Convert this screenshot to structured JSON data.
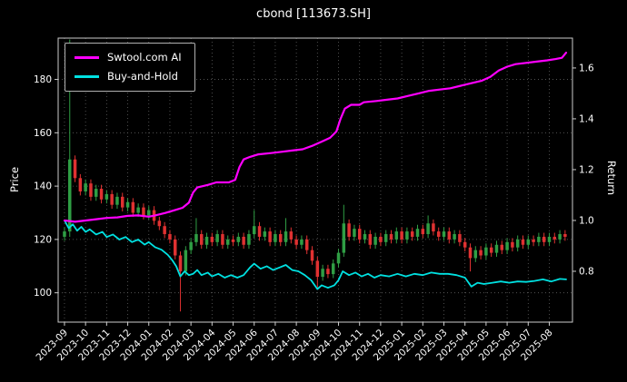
{
  "title": "cbond [113673.SH]",
  "legend": [
    {
      "label": "Swtool.com AI",
      "color": "#ff00ff"
    },
    {
      "label": "Buy-and-Hold",
      "color": "#00e1e1"
    }
  ],
  "axes": {
    "left": {
      "label": "Price",
      "ticks": [
        100,
        120,
        140,
        160,
        180
      ],
      "range": [
        89,
        195.5
      ]
    },
    "right": {
      "label": "Return",
      "ticks": [
        0.8,
        1.0,
        1.2,
        1.4,
        1.6
      ],
      "range": [
        0.6,
        1.7175
      ]
    },
    "x": {
      "range": [
        -0.3,
        24.1
      ],
      "tick_positions": [
        0,
        1,
        2,
        3,
        4,
        5,
        6,
        7,
        8,
        9,
        10,
        11,
        12,
        13,
        14,
        15,
        16,
        17,
        18,
        19,
        20,
        21,
        22,
        23
      ],
      "tick_labels": [
        "2023-09",
        "2023-10",
        "2023-11",
        "2023-12",
        "2024-01",
        "2024-02",
        "2024-03",
        "2024-04",
        "2024-05",
        "2024-06",
        "2024-07",
        "2024-08",
        "2024-09",
        "2024-10",
        "2024-11",
        "2024-12",
        "2025-01",
        "2025-02",
        "2025-03",
        "2025-04",
        "2025-05",
        "2025-06",
        "2025-07",
        "2025-08"
      ]
    }
  },
  "colors": {
    "background": "#000000",
    "text": "#ffffff",
    "grid": "#5f5f5f",
    "spine": "#cccccc",
    "candle_up": "#2f9e44",
    "candle_down": "#e03131",
    "ai_line": "#ff00ff",
    "bh_line": "#00e1e1"
  },
  "chart_data": {
    "type": "candlestick",
    "title": "cbond [113673.SH]",
    "xlabel": "",
    "ylabel_left": "Price",
    "ylabel_right": "Return",
    "x_unit": "months since 2023-09",
    "grid": true,
    "legend_position": "upper left",
    "candles_format": [
      "x",
      "open",
      "high",
      "low",
      "close"
    ],
    "candles": [
      [
        0,
        121,
        124.5,
        119.5,
        123
      ],
      [
        0.25,
        123,
        195,
        121,
        150
      ],
      [
        0.5,
        150,
        151.5,
        141.5,
        143
      ],
      [
        0.75,
        143,
        144.5,
        136.5,
        138
      ],
      [
        1,
        138,
        142.5,
        136.5,
        141
      ],
      [
        1.25,
        141,
        142.5,
        134.5,
        136
      ],
      [
        1.5,
        136,
        140.5,
        134.5,
        139
      ],
      [
        1.75,
        139,
        140.5,
        133.5,
        135
      ],
      [
        2,
        135,
        138.5,
        133.5,
        137
      ],
      [
        2.25,
        137,
        138.5,
        131.5,
        133
      ],
      [
        2.5,
        133,
        137.5,
        131.5,
        136
      ],
      [
        2.75,
        136,
        137.5,
        130.5,
        132
      ],
      [
        3,
        132,
        135.5,
        130.5,
        134
      ],
      [
        3.25,
        134,
        135.5,
        128.5,
        130
      ],
      [
        3.5,
        130,
        133.5,
        128.5,
        132
      ],
      [
        3.75,
        132,
        133.5,
        127.5,
        129
      ],
      [
        4,
        129,
        132.5,
        127.5,
        131
      ],
      [
        4.25,
        131,
        132.5,
        125.5,
        127
      ],
      [
        4.5,
        127,
        128.5,
        123.5,
        125
      ],
      [
        4.75,
        125,
        126.5,
        120.5,
        122
      ],
      [
        5,
        122,
        123.5,
        118.5,
        120
      ],
      [
        5.25,
        120,
        121.5,
        112.5,
        114
      ],
      [
        5.5,
        114,
        115.5,
        93,
        108
      ],
      [
        5.75,
        108,
        117.5,
        106.5,
        116
      ],
      [
        6,
        116,
        120.5,
        114.5,
        119
      ],
      [
        6.25,
        119,
        128,
        117.5,
        122
      ],
      [
        6.5,
        122,
        123.5,
        116.5,
        118
      ],
      [
        6.75,
        118,
        122.5,
        116.5,
        121
      ],
      [
        7,
        121,
        122.5,
        117.5,
        119
      ],
      [
        7.25,
        119,
        123.5,
        117.5,
        122
      ],
      [
        7.5,
        122,
        123.5,
        116.5,
        118
      ],
      [
        7.75,
        118,
        121.5,
        116.5,
        120
      ],
      [
        8,
        120,
        121.5,
        117.5,
        119
      ],
      [
        8.25,
        119,
        122.5,
        117.5,
        121
      ],
      [
        8.5,
        121,
        122.5,
        116.5,
        118
      ],
      [
        8.75,
        118,
        123.5,
        116.5,
        122
      ],
      [
        9,
        122,
        131,
        120.5,
        125
      ],
      [
        9.25,
        125,
        126.5,
        119.5,
        121
      ],
      [
        9.5,
        121,
        124.5,
        119.5,
        123
      ],
      [
        9.75,
        123,
        124.5,
        117.5,
        119
      ],
      [
        10,
        119,
        123.5,
        117.5,
        122
      ],
      [
        10.25,
        122,
        123.5,
        117.5,
        119
      ],
      [
        10.5,
        119,
        128,
        117.5,
        123
      ],
      [
        10.75,
        123,
        124.5,
        118.5,
        120
      ],
      [
        11,
        120,
        121.5,
        116.5,
        118
      ],
      [
        11.25,
        118,
        121.5,
        116.5,
        120
      ],
      [
        11.5,
        120,
        121.5,
        114.5,
        116
      ],
      [
        11.75,
        116,
        117.5,
        110.5,
        112
      ],
      [
        12,
        112,
        113.5,
        102,
        106
      ],
      [
        12.25,
        106,
        110.5,
        104.5,
        109
      ],
      [
        12.5,
        109,
        110.5,
        105.5,
        107
      ],
      [
        12.75,
        107,
        112.5,
        105.5,
        111
      ],
      [
        13,
        111,
        116.5,
        109.5,
        115
      ],
      [
        13.25,
        115,
        133,
        113.5,
        126
      ],
      [
        13.5,
        126,
        127.5,
        119.5,
        121
      ],
      [
        13.75,
        121,
        125.5,
        119.5,
        124
      ],
      [
        14,
        124,
        125.5,
        118.5,
        120
      ],
      [
        14.25,
        120,
        123.5,
        118.5,
        122
      ],
      [
        14.5,
        122,
        123.5,
        116.5,
        118
      ],
      [
        14.75,
        118,
        122.5,
        116.5,
        121
      ],
      [
        15,
        121,
        122.5,
        117.5,
        119
      ],
      [
        15.25,
        119,
        123.5,
        117.5,
        122
      ],
      [
        15.5,
        122,
        123.5,
        118.5,
        120
      ],
      [
        15.75,
        120,
        124.5,
        118.5,
        123
      ],
      [
        16,
        123,
        124.5,
        118.5,
        120
      ],
      [
        16.25,
        120,
        124.5,
        118.5,
        123
      ],
      [
        16.5,
        123,
        124.5,
        119.5,
        121
      ],
      [
        16.75,
        121,
        125.5,
        119.5,
        124
      ],
      [
        17,
        124,
        125.5,
        120.5,
        122
      ],
      [
        17.25,
        122,
        129,
        120.5,
        126
      ],
      [
        17.5,
        126,
        127.5,
        121.5,
        123
      ],
      [
        17.75,
        123,
        124.5,
        119.5,
        121
      ],
      [
        18,
        121,
        124.5,
        119.5,
        123
      ],
      [
        18.25,
        123,
        124.5,
        118.5,
        120
      ],
      [
        18.5,
        120,
        123.5,
        118.5,
        122
      ],
      [
        18.75,
        122,
        123.5,
        117.5,
        119
      ],
      [
        19,
        119,
        120.5,
        115.5,
        117
      ],
      [
        19.25,
        117,
        118.5,
        108,
        113
      ],
      [
        19.5,
        113,
        117.5,
        111.5,
        116
      ],
      [
        19.75,
        116,
        117.5,
        112.5,
        114
      ],
      [
        20,
        114,
        118.5,
        112.5,
        117
      ],
      [
        20.25,
        117,
        118.5,
        113.5,
        115
      ],
      [
        20.5,
        115,
        119.5,
        113.5,
        118
      ],
      [
        20.75,
        118,
        119.5,
        114.5,
        116
      ],
      [
        21,
        116,
        120.5,
        114.5,
        119
      ],
      [
        21.25,
        119,
        120.5,
        115.5,
        117
      ],
      [
        21.5,
        117,
        121.5,
        115.5,
        120
      ],
      [
        21.75,
        120,
        121.5,
        116.5,
        118
      ],
      [
        22,
        118,
        121.5,
        116.5,
        120
      ],
      [
        22.25,
        120,
        121.5,
        117.5,
        119
      ],
      [
        22.5,
        119,
        122.5,
        117.5,
        121
      ],
      [
        22.75,
        121,
        122.5,
        117.5,
        119
      ],
      [
        23,
        119,
        122.5,
        117.5,
        121
      ],
      [
        23.25,
        121,
        122.5,
        118.5,
        120
      ],
      [
        23.5,
        120,
        123.5,
        118.5,
        122
      ],
      [
        23.75,
        122,
        123.5,
        119.5,
        121
      ]
    ],
    "series": [
      {
        "name": "Swtool.com AI",
        "axis": "right",
        "color": "#ff00ff",
        "points": [
          [
            0,
            1.0
          ],
          [
            0.5,
            0.995
          ],
          [
            1,
            1.0
          ],
          [
            1.5,
            1.005
          ],
          [
            2,
            1.01
          ],
          [
            2.5,
            1.012
          ],
          [
            3,
            1.018
          ],
          [
            3.5,
            1.02
          ],
          [
            4,
            1.015
          ],
          [
            4.3,
            1.02
          ],
          [
            4.8,
            1.03
          ],
          [
            5.2,
            1.04
          ],
          [
            5.6,
            1.05
          ],
          [
            5.9,
            1.07
          ],
          [
            6.1,
            1.11
          ],
          [
            6.3,
            1.13
          ],
          [
            6.8,
            1.14
          ],
          [
            7.2,
            1.15
          ],
          [
            7.8,
            1.15
          ],
          [
            8.1,
            1.16
          ],
          [
            8.3,
            1.21
          ],
          [
            8.5,
            1.24
          ],
          [
            8.8,
            1.25
          ],
          [
            9.2,
            1.26
          ],
          [
            9.8,
            1.265
          ],
          [
            10.3,
            1.27
          ],
          [
            10.8,
            1.275
          ],
          [
            11.3,
            1.28
          ],
          [
            11.8,
            1.295
          ],
          [
            12.2,
            1.31
          ],
          [
            12.6,
            1.325
          ],
          [
            12.9,
            1.35
          ],
          [
            13.1,
            1.4
          ],
          [
            13.3,
            1.44
          ],
          [
            13.6,
            1.455
          ],
          [
            14,
            1.455
          ],
          [
            14.2,
            1.465
          ],
          [
            14.8,
            1.47
          ],
          [
            15.3,
            1.475
          ],
          [
            15.8,
            1.48
          ],
          [
            16.3,
            1.49
          ],
          [
            16.8,
            1.5
          ],
          [
            17.3,
            1.51
          ],
          [
            17.8,
            1.515
          ],
          [
            18.3,
            1.52
          ],
          [
            18.8,
            1.53
          ],
          [
            19.3,
            1.54
          ],
          [
            19.8,
            1.55
          ],
          [
            20.2,
            1.565
          ],
          [
            20.6,
            1.59
          ],
          [
            21,
            1.605
          ],
          [
            21.4,
            1.615
          ],
          [
            21.9,
            1.62
          ],
          [
            22.4,
            1.625
          ],
          [
            22.9,
            1.63
          ],
          [
            23.3,
            1.635
          ],
          [
            23.6,
            1.64
          ],
          [
            23.8,
            1.66
          ]
        ]
      },
      {
        "name": "Buy-and-Hold",
        "axis": "right",
        "color": "#00e1e1",
        "points": [
          [
            0,
            1.0
          ],
          [
            0.2,
            0.97
          ],
          [
            0.4,
            0.985
          ],
          [
            0.6,
            0.96
          ],
          [
            0.8,
            0.975
          ],
          [
            1,
            0.955
          ],
          [
            1.2,
            0.965
          ],
          [
            1.5,
            0.945
          ],
          [
            1.8,
            0.955
          ],
          [
            2,
            0.935
          ],
          [
            2.3,
            0.945
          ],
          [
            2.6,
            0.925
          ],
          [
            2.9,
            0.935
          ],
          [
            3.2,
            0.915
          ],
          [
            3.5,
            0.925
          ],
          [
            3.8,
            0.905
          ],
          [
            4,
            0.915
          ],
          [
            4.3,
            0.895
          ],
          [
            4.6,
            0.885
          ],
          [
            4.9,
            0.865
          ],
          [
            5.1,
            0.845
          ],
          [
            5.3,
            0.82
          ],
          [
            5.5,
            0.78
          ],
          [
            5.7,
            0.8
          ],
          [
            5.9,
            0.785
          ],
          [
            6.1,
            0.79
          ],
          [
            6.3,
            0.805
          ],
          [
            6.5,
            0.785
          ],
          [
            6.8,
            0.795
          ],
          [
            7,
            0.78
          ],
          [
            7.3,
            0.79
          ],
          [
            7.6,
            0.775
          ],
          [
            7.9,
            0.785
          ],
          [
            8.2,
            0.775
          ],
          [
            8.5,
            0.785
          ],
          [
            8.8,
            0.815
          ],
          [
            9,
            0.83
          ],
          [
            9.3,
            0.81
          ],
          [
            9.6,
            0.82
          ],
          [
            9.9,
            0.805
          ],
          [
            10.2,
            0.815
          ],
          [
            10.5,
            0.825
          ],
          [
            10.8,
            0.805
          ],
          [
            11.1,
            0.8
          ],
          [
            11.4,
            0.785
          ],
          [
            11.7,
            0.765
          ],
          [
            12,
            0.73
          ],
          [
            12.2,
            0.745
          ],
          [
            12.5,
            0.735
          ],
          [
            12.8,
            0.745
          ],
          [
            13,
            0.765
          ],
          [
            13.2,
            0.8
          ],
          [
            13.5,
            0.785
          ],
          [
            13.8,
            0.795
          ],
          [
            14.1,
            0.78
          ],
          [
            14.4,
            0.79
          ],
          [
            14.7,
            0.775
          ],
          [
            15,
            0.785
          ],
          [
            15.4,
            0.78
          ],
          [
            15.8,
            0.79
          ],
          [
            16.2,
            0.78
          ],
          [
            16.6,
            0.79
          ],
          [
            17,
            0.785
          ],
          [
            17.4,
            0.795
          ],
          [
            17.8,
            0.79
          ],
          [
            18.2,
            0.79
          ],
          [
            18.6,
            0.785
          ],
          [
            19,
            0.775
          ],
          [
            19.3,
            0.74
          ],
          [
            19.6,
            0.755
          ],
          [
            19.9,
            0.75
          ],
          [
            20.3,
            0.755
          ],
          [
            20.7,
            0.76
          ],
          [
            21.1,
            0.755
          ],
          [
            21.5,
            0.76
          ],
          [
            21.9,
            0.758
          ],
          [
            22.3,
            0.762
          ],
          [
            22.7,
            0.768
          ],
          [
            23.1,
            0.76
          ],
          [
            23.5,
            0.77
          ],
          [
            23.8,
            0.768
          ]
        ]
      }
    ]
  }
}
